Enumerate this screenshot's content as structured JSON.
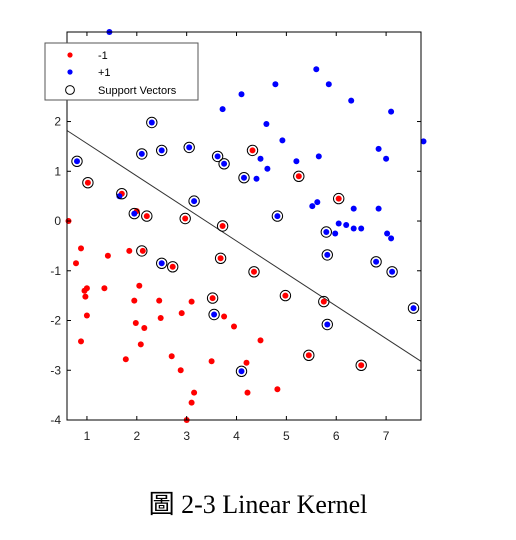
{
  "caption": "圖  2-3 Linear Kernel",
  "chart_data": {
    "type": "scatter",
    "title": "",
    "xlabel": "",
    "ylabel": "",
    "xlim": [
      0.6,
      7.7
    ],
    "ylim": [
      -4,
      3.8
    ],
    "xticks": [
      1,
      2,
      3,
      4,
      5,
      6,
      7
    ],
    "yticks": [
      -4,
      -3,
      -2,
      -1,
      0,
      1,
      2
    ],
    "grid": false,
    "legend_position": "top-left",
    "legend": [
      {
        "label": "-1",
        "marker": "dot",
        "color": "#ff0000"
      },
      {
        "label": "+1",
        "marker": "dot",
        "color": "#0000ff"
      },
      {
        "label": "Support Vectors",
        "marker": "ring",
        "color": "#000000"
      }
    ],
    "series": [
      {
        "name": "-1",
        "color": "#ff0000",
        "points": [
          [
            0.63,
            0.0
          ],
          [
            0.78,
            -0.85
          ],
          [
            0.88,
            -0.55
          ],
          [
            0.95,
            -1.4
          ],
          [
            0.97,
            -1.52
          ],
          [
            1.0,
            -1.35
          ],
          [
            1.0,
            -1.9
          ],
          [
            0.88,
            -2.42
          ],
          [
            1.02,
            0.77
          ],
          [
            1.35,
            -1.35
          ],
          [
            1.42,
            -0.7
          ],
          [
            1.7,
            0.55
          ],
          [
            1.78,
            -2.78
          ],
          [
            1.85,
            -0.6
          ],
          [
            1.95,
            -1.6
          ],
          [
            1.98,
            -2.05
          ],
          [
            2.0,
            0.2
          ],
          [
            2.05,
            -1.3
          ],
          [
            2.08,
            -2.48
          ],
          [
            2.12,
            -0.6
          ],
          [
            2.15,
            -2.15
          ],
          [
            2.2,
            0.1
          ],
          [
            2.45,
            -1.6
          ],
          [
            2.48,
            -1.95
          ],
          [
            2.7,
            -2.72
          ],
          [
            2.72,
            -0.92
          ],
          [
            2.88,
            -3.0
          ],
          [
            2.9,
            -1.85
          ],
          [
            2.97,
            0.05
          ],
          [
            3.0,
            -4.0
          ],
          [
            3.1,
            -1.62
          ],
          [
            3.1,
            -3.65
          ],
          [
            3.15,
            -3.45
          ],
          [
            3.5,
            -2.82
          ],
          [
            3.52,
            -1.55
          ],
          [
            3.68,
            -0.75
          ],
          [
            3.75,
            -1.92
          ],
          [
            3.95,
            -2.12
          ],
          [
            4.2,
            -2.85
          ],
          [
            4.22,
            -3.45
          ],
          [
            4.35,
            -1.02
          ],
          [
            4.48,
            -2.4
          ],
          [
            4.82,
            -3.38
          ],
          [
            4.98,
            -1.5
          ],
          [
            5.25,
            0.9
          ],
          [
            5.45,
            -2.7
          ],
          [
            5.75,
            -1.62
          ],
          [
            6.05,
            0.45
          ],
          [
            6.5,
            -2.9
          ],
          [
            3.72,
            -0.1
          ],
          [
            4.32,
            1.42
          ]
        ]
      },
      {
        "name": "+1",
        "color": "#0000ff",
        "points": [
          [
            0.8,
            1.2
          ],
          [
            1.45,
            3.8
          ],
          [
            1.65,
            0.5
          ],
          [
            2.1,
            1.35
          ],
          [
            2.3,
            1.98
          ],
          [
            2.5,
            1.42
          ],
          [
            2.5,
            -0.85
          ],
          [
            3.05,
            1.48
          ],
          [
            3.15,
            0.4
          ],
          [
            3.62,
            1.3
          ],
          [
            3.72,
            2.25
          ],
          [
            3.75,
            1.15
          ],
          [
            4.1,
            2.55
          ],
          [
            4.15,
            0.87
          ],
          [
            4.4,
            0.85
          ],
          [
            4.48,
            1.25
          ],
          [
            4.6,
            1.95
          ],
          [
            4.62,
            1.05
          ],
          [
            4.78,
            2.75
          ],
          [
            4.82,
            0.1
          ],
          [
            4.92,
            1.62
          ],
          [
            5.2,
            1.2
          ],
          [
            5.52,
            0.3
          ],
          [
            5.6,
            3.05
          ],
          [
            5.65,
            1.3
          ],
          [
            5.62,
            0.38
          ],
          [
            5.8,
            -0.22
          ],
          [
            5.82,
            -0.68
          ],
          [
            5.85,
            2.75
          ],
          [
            5.98,
            -0.25
          ],
          [
            6.05,
            -0.05
          ],
          [
            6.2,
            -0.08
          ],
          [
            6.3,
            2.42
          ],
          [
            6.35,
            0.25
          ],
          [
            6.35,
            -0.15
          ],
          [
            6.5,
            -0.15
          ],
          [
            6.8,
            -0.82
          ],
          [
            6.85,
            0.25
          ],
          [
            6.85,
            1.45
          ],
          [
            7.0,
            1.25
          ],
          [
            7.02,
            -0.25
          ],
          [
            7.1,
            -0.35
          ],
          [
            7.1,
            2.2
          ],
          [
            7.12,
            -1.02
          ],
          [
            7.55,
            -1.75
          ],
          [
            7.75,
            1.6
          ],
          [
            3.55,
            -1.88
          ],
          [
            4.1,
            -3.02
          ],
          [
            5.82,
            -2.08
          ],
          [
            1.95,
            0.15
          ]
        ]
      }
    ],
    "support_vectors": [
      [
        0.8,
        1.2
      ],
      [
        1.02,
        0.77
      ],
      [
        1.7,
        0.55
      ],
      [
        1.95,
        0.15
      ],
      [
        2.1,
        -0.6
      ],
      [
        2.2,
        0.1
      ],
      [
        2.1,
        1.35
      ],
      [
        2.3,
        1.98
      ],
      [
        2.5,
        1.42
      ],
      [
        2.5,
        -0.85
      ],
      [
        2.72,
        -0.92
      ],
      [
        2.97,
        0.05
      ],
      [
        3.05,
        1.48
      ],
      [
        3.15,
        0.4
      ],
      [
        3.52,
        -1.55
      ],
      [
        3.55,
        -1.88
      ],
      [
        3.62,
        1.3
      ],
      [
        3.68,
        -0.75
      ],
      [
        3.72,
        -0.1
      ],
      [
        3.75,
        1.15
      ],
      [
        4.1,
        -3.02
      ],
      [
        4.15,
        0.87
      ],
      [
        4.32,
        1.42
      ],
      [
        4.35,
        -1.02
      ],
      [
        4.82,
        0.1
      ],
      [
        4.98,
        -1.5
      ],
      [
        5.25,
        0.9
      ],
      [
        5.45,
        -2.7
      ],
      [
        5.75,
        -1.62
      ],
      [
        5.8,
        -0.22
      ],
      [
        5.82,
        -0.68
      ],
      [
        5.82,
        -2.08
      ],
      [
        6.05,
        0.45
      ],
      [
        6.5,
        -2.9
      ],
      [
        6.8,
        -0.82
      ],
      [
        7.12,
        -1.02
      ],
      [
        7.55,
        -1.75
      ]
    ],
    "decision_boundary": {
      "x": [
        0.6,
        7.7
      ],
      "y": [
        1.82,
        -2.82
      ]
    }
  }
}
